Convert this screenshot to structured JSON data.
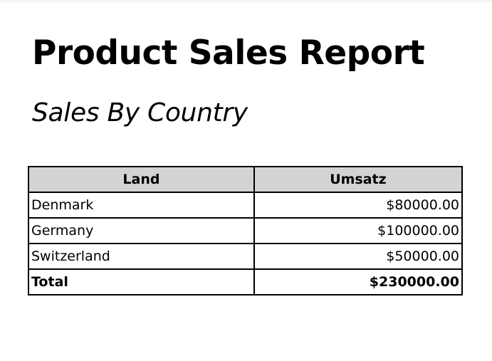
{
  "report": {
    "title": "Product Sales Report",
    "subtitle": "Sales By Country"
  },
  "table": {
    "headers": [
      "Land",
      "Umsatz"
    ],
    "rows": [
      {
        "country": "Denmark",
        "sales": "$80000.00"
      },
      {
        "country": "Germany",
        "sales": "$100000.00"
      },
      {
        "country": "Switzerland",
        "sales": "$50000.00"
      }
    ],
    "total": {
      "label": "Total",
      "value": "$230000.00"
    }
  }
}
